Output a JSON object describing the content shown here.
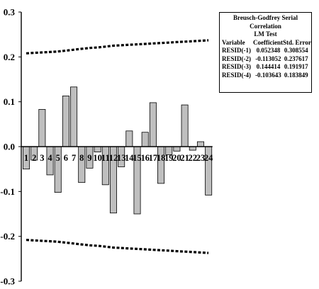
{
  "chart_data": {
    "type": "bar",
    "categories": [
      "1",
      "2",
      "3",
      "4",
      "5",
      "6",
      "7",
      "8",
      "9",
      "10",
      "11",
      "12",
      "13",
      "14",
      "15",
      "16",
      "17",
      "18",
      "19",
      "20",
      "21",
      "22",
      "23",
      "24"
    ],
    "values": [
      -0.05,
      -0.03,
      0.083,
      -0.063,
      -0.102,
      0.113,
      0.133,
      -0.08,
      -0.048,
      -0.012,
      -0.085,
      -0.148,
      -0.045,
      0.035,
      -0.15,
      0.032,
      0.098,
      -0.082,
      -0.018,
      -0.01,
      0.093,
      -0.008,
      0.011,
      -0.108
    ],
    "upper_band": [
      0.208,
      0.209,
      0.21,
      0.211,
      0.212,
      0.214,
      0.216,
      0.218,
      0.22,
      0.221,
      0.223,
      0.225,
      0.226,
      0.227,
      0.228,
      0.229,
      0.23,
      0.231,
      0.232,
      0.233,
      0.234,
      0.235,
      0.236,
      0.237
    ],
    "lower_band": [
      -0.208,
      -0.209,
      -0.21,
      -0.211,
      -0.212,
      -0.214,
      -0.216,
      -0.218,
      -0.22,
      -0.221,
      -0.223,
      -0.225,
      -0.226,
      -0.227,
      -0.228,
      -0.229,
      -0.23,
      -0.231,
      -0.232,
      -0.233,
      -0.234,
      -0.235,
      -0.236,
      -0.237
    ],
    "ylim": [
      -0.3,
      0.3
    ],
    "yticks": [
      "0.3",
      "0.2",
      "0.1",
      "0.0",
      "-0.1",
      "-0.2",
      "-0.3"
    ],
    "ytick_values": [
      0.3,
      0.2,
      0.1,
      0.0,
      -0.1,
      -0.2,
      -0.3
    ],
    "grid": false,
    "legend": "none"
  },
  "stats_table": {
    "title_line1": "Breusch-Godfrey Serial Correlation",
    "title_line2": "LM Test",
    "headers": [
      "Variable",
      "Coefficient",
      "Std. Error"
    ],
    "rows": [
      [
        "RESID(-1)",
        "0.052348",
        "0.308554"
      ],
      [
        "RESID(-2)",
        "-0.113052",
        "0.237617"
      ],
      [
        "RESID(-3)",
        "0.144414",
        "0.191917"
      ],
      [
        "RESID(-4)",
        "-0.103643",
        "0.183849"
      ]
    ]
  }
}
